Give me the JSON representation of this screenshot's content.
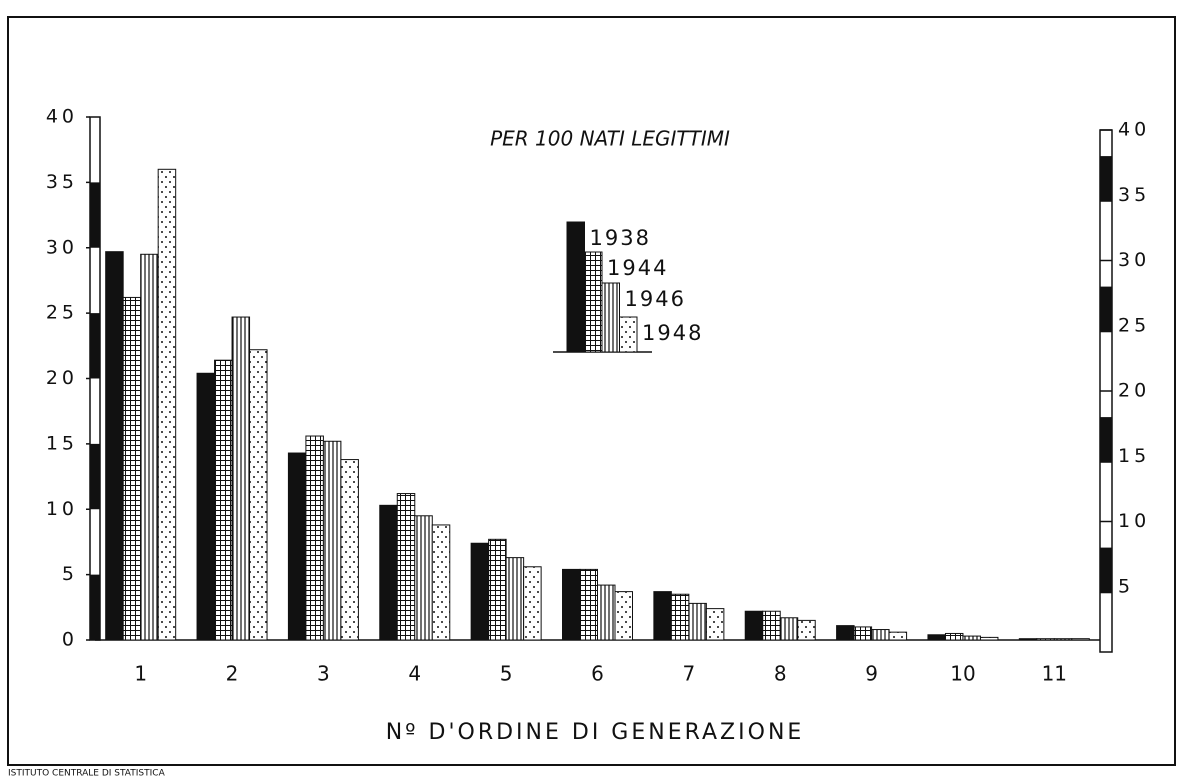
{
  "chart_data": {
    "type": "bar",
    "annotation": "PER 100 NATI LEGITTIMI",
    "x_label": "Nº D'ORDINE DI GENERAZIONE",
    "footer": "ISTITUTO CENTRALE DI STATISTICA",
    "categories": [
      "1",
      "2",
      "3",
      "4",
      "5",
      "6",
      "7",
      "8",
      "9",
      "10",
      "11"
    ],
    "series": [
      {
        "name": "1938",
        "color": "#111111",
        "values": [
          29.7,
          20.4,
          14.3,
          10.3,
          7.4,
          5.4,
          3.7,
          2.2,
          1.1,
          0.4,
          0.1
        ]
      },
      {
        "name": "1944",
        "color": "#111111",
        "values": [
          26.2,
          21.4,
          15.6,
          11.2,
          7.7,
          5.4,
          3.5,
          2.2,
          1.0,
          0.5,
          0.1
        ]
      },
      {
        "name": "1946",
        "color": "#111111",
        "values": [
          29.5,
          24.7,
          15.2,
          9.5,
          6.3,
          4.2,
          2.8,
          1.7,
          0.8,
          0.3,
          0.1
        ]
      },
      {
        "name": "1948",
        "color": "#111111",
        "values": [
          36.0,
          22.2,
          13.8,
          8.8,
          5.6,
          3.7,
          2.4,
          1.5,
          0.6,
          0.2,
          0.1
        ]
      }
    ],
    "ylim": [
      0,
      40
    ],
    "yticks": [
      0,
      5,
      10,
      15,
      20,
      25,
      30,
      35,
      40
    ],
    "y2lim": [
      0,
      40
    ],
    "y2ticks": [
      5,
      10,
      15,
      20,
      25,
      30,
      35,
      40
    ],
    "legend": "top-center"
  }
}
